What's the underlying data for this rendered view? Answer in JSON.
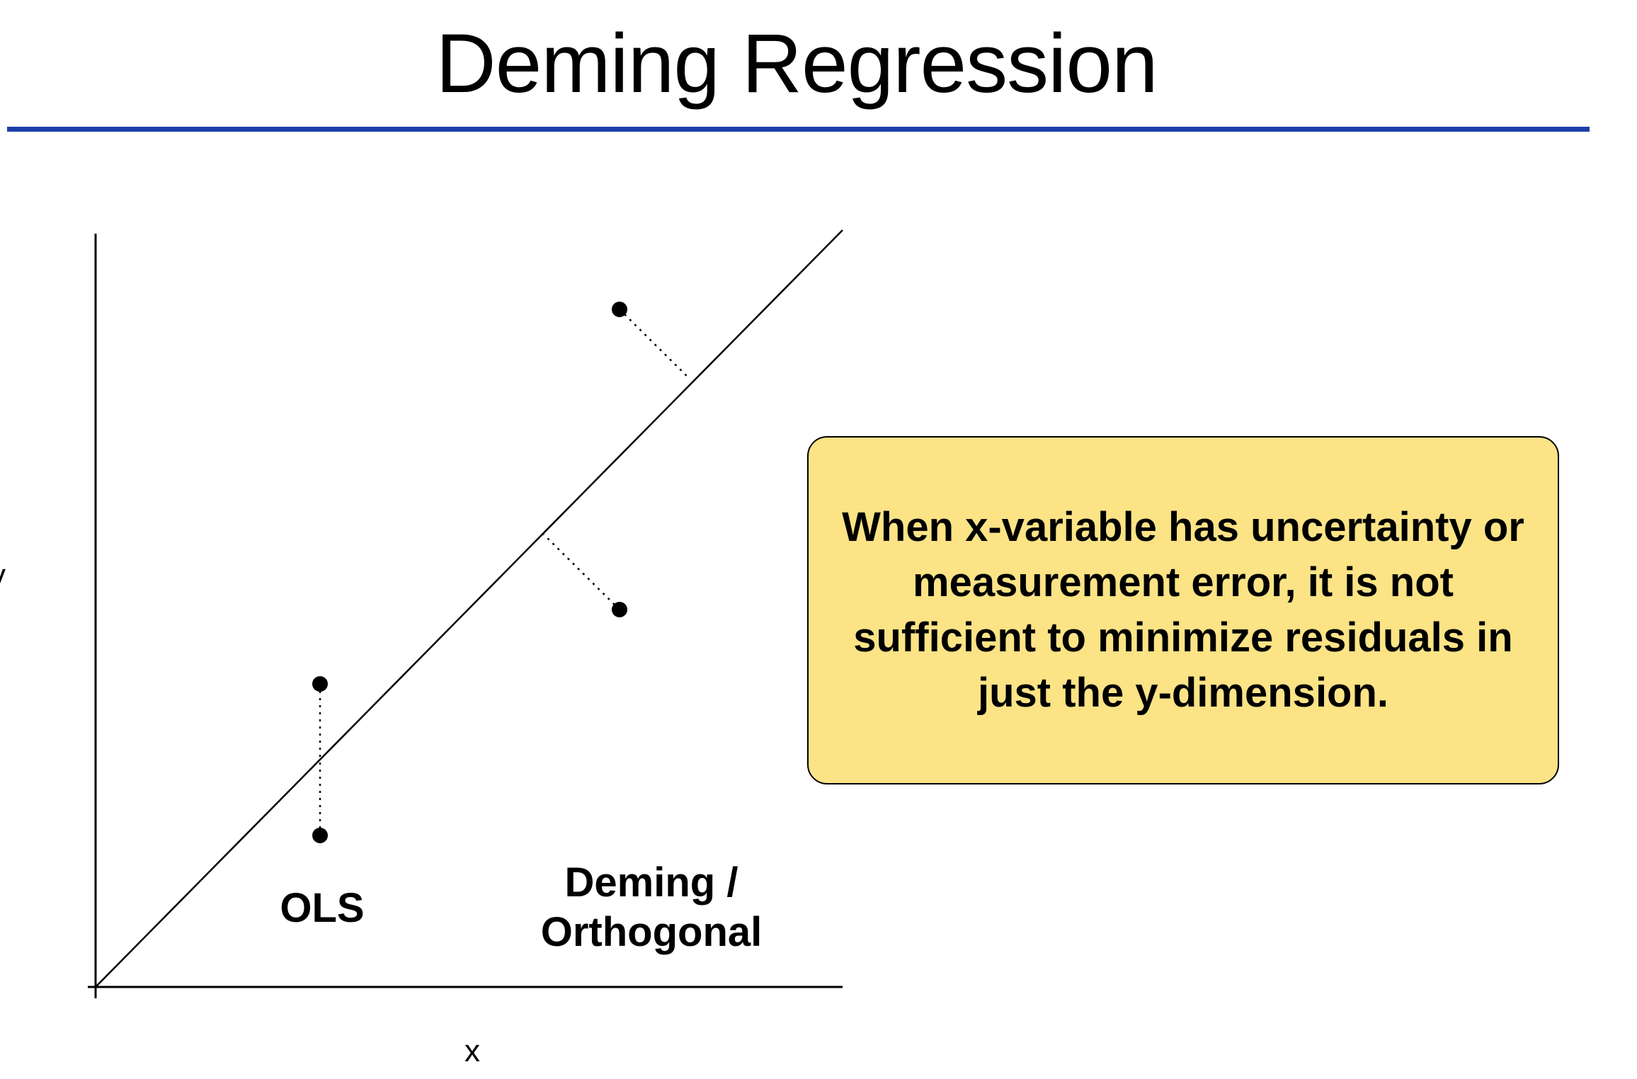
{
  "slide": {
    "title": "Deming Regression"
  },
  "diagram": {
    "axis_labels": {
      "x": "x",
      "y": "y"
    },
    "labels": {
      "ols": "OLS",
      "deming": "Deming /\nOrthogonal"
    },
    "callout": "When x-variable has uncertainty or measurement error, it is not sufficient to minimize residuals in just the y-dimension.",
    "colors": {
      "title_rule": "#1c3ea6",
      "callout_fill": "#fbe386",
      "ink": "#000000"
    }
  }
}
